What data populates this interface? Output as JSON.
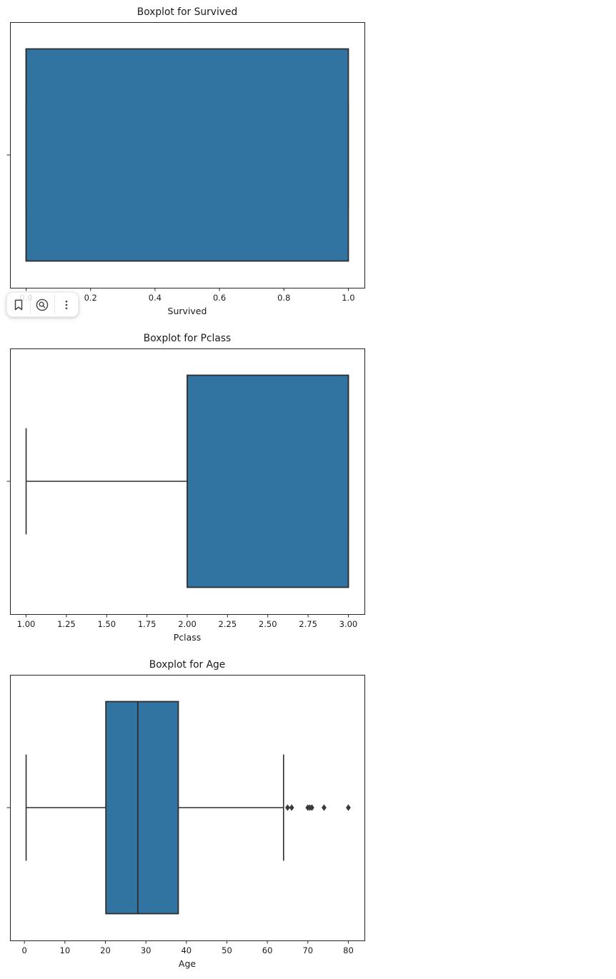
{
  "figure": {
    "bg": "#ffffff",
    "text_color": "#1a1a1a",
    "spine_color": "#262626",
    "box_fill": "#3274a1",
    "line_color": "#2e2e2e",
    "outlier_color": "#3a3a3a"
  },
  "output_toolbar": {
    "buttons": [
      {
        "name": "bookmark",
        "icon": "bookmark-icon"
      },
      {
        "name": "search-output",
        "icon": "search-in-circle-icon"
      },
      {
        "name": "more-options",
        "icon": "more-vert-icon"
      }
    ]
  },
  "chart_data": [
    {
      "type": "boxplot",
      "orientation": "horizontal",
      "title": "Boxplot for Survived",
      "xlabel": "Survived",
      "xlim": [
        -0.05,
        1.05
      ],
      "xticks": [
        0,
        0.2,
        0.4,
        0.6,
        0.8,
        1.0
      ],
      "xtick_labels": [
        "0.0",
        "0.2",
        "0.4",
        "0.6",
        "0.8",
        "1.0"
      ],
      "whisker_low": 0,
      "q1": 0,
      "median": 0,
      "q3": 1,
      "whisker_high": 1,
      "outliers": []
    },
    {
      "type": "boxplot",
      "orientation": "horizontal",
      "title": "Boxplot for Pclass",
      "xlabel": "Pclass",
      "xlim": [
        0.9,
        3.1
      ],
      "xticks": [
        1.0,
        1.25,
        1.5,
        1.75,
        2.0,
        2.25,
        2.5,
        2.75,
        3.0
      ],
      "xtick_labels": [
        "1.00",
        "1.25",
        "1.50",
        "1.75",
        "2.00",
        "2.25",
        "2.50",
        "2.75",
        "3.00"
      ],
      "whisker_low": 1,
      "q1": 2,
      "median": 3,
      "q3": 3,
      "whisker_high": 3,
      "outliers": []
    },
    {
      "type": "boxplot",
      "orientation": "horizontal",
      "title": "Boxplot for Age",
      "xlabel": "Age",
      "xlim": [
        -3.56,
        83.98
      ],
      "xticks": [
        0,
        10,
        20,
        30,
        40,
        50,
        60,
        70,
        80
      ],
      "xtick_labels": [
        "0",
        "10",
        "20",
        "30",
        "40",
        "50",
        "60",
        "70",
        "80"
      ],
      "whisker_low": 0.42,
      "q1": 20.125,
      "median": 28,
      "q3": 38,
      "whisker_high": 64,
      "outliers": [
        65,
        66,
        70,
        70.5,
        71,
        74,
        80
      ]
    }
  ]
}
